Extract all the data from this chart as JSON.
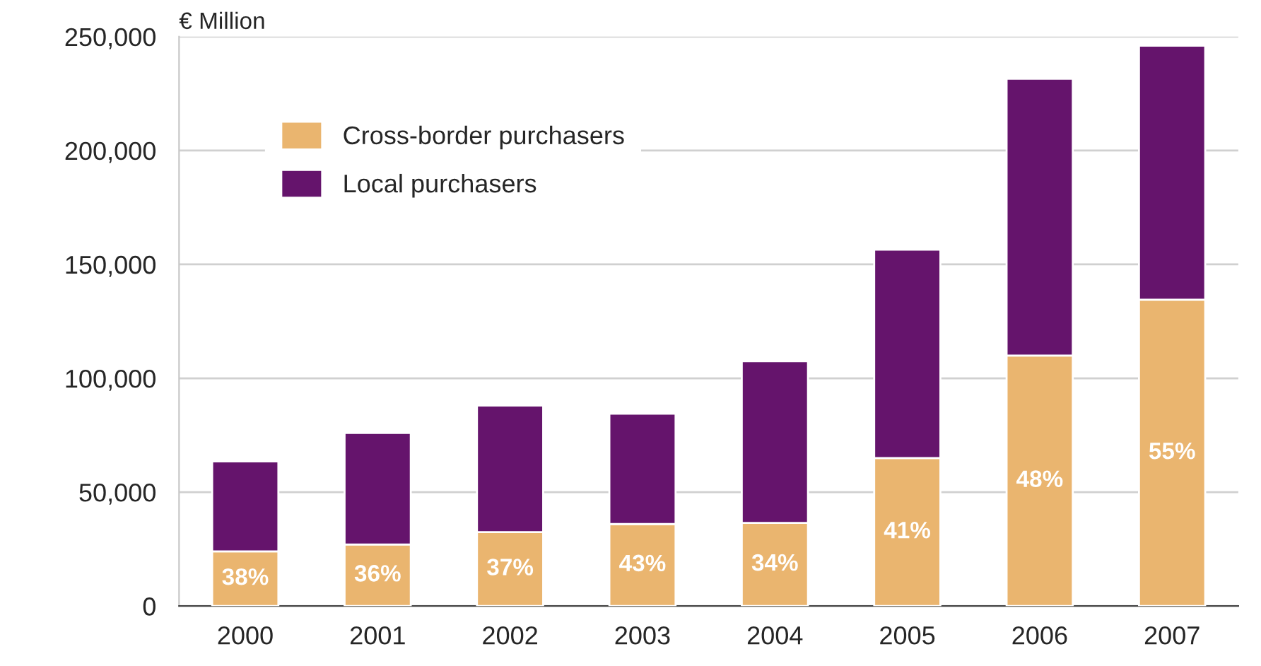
{
  "chart_data": {
    "type": "bar",
    "stacked": true,
    "ylabel": "€ Million",
    "categories": [
      "2000",
      "2001",
      "2002",
      "2003",
      "2004",
      "2005",
      "2006",
      "2007"
    ],
    "series": [
      {
        "name": "Cross-border purchasers",
        "color": "#eab56f",
        "values": [
          24000,
          27000,
          32500,
          36000,
          36500,
          65000,
          110000,
          134500
        ]
      },
      {
        "name": "Local purchasers",
        "color": "#65146c",
        "values": [
          39500,
          49000,
          55500,
          48500,
          71000,
          91500,
          121500,
          111500
        ]
      }
    ],
    "ylim": [
      0,
      250000
    ],
    "yticks": [
      {
        "value": 0,
        "label": "0"
      },
      {
        "value": 50000,
        "label": "50,000"
      },
      {
        "value": 100000,
        "label": "100,000"
      },
      {
        "value": 150000,
        "label": "150,000"
      },
      {
        "value": 200000,
        "label": "200,000"
      },
      {
        "value": 250000,
        "label": "250,000"
      }
    ],
    "grid": "y",
    "legend": "top left",
    "annotations": [
      "38%",
      "36%",
      "37%",
      "43%",
      "34%",
      "41%",
      "48%",
      "55%"
    ]
  }
}
